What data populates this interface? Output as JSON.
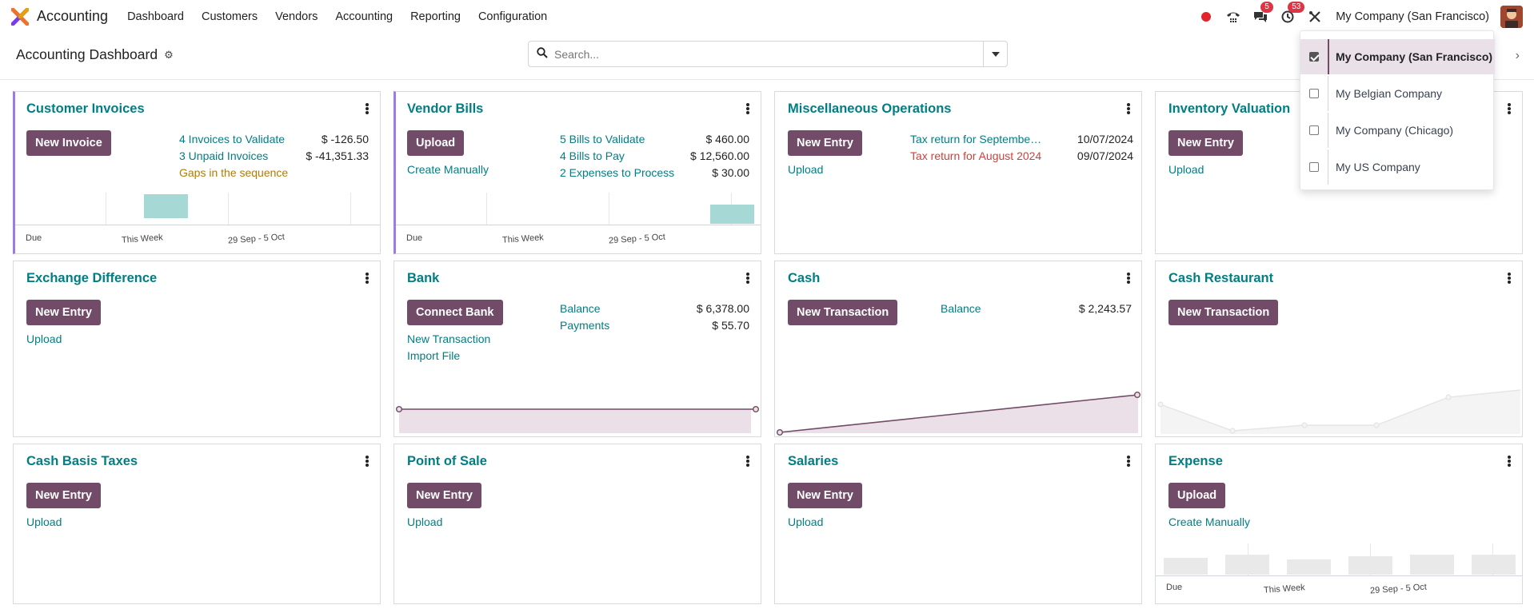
{
  "navbar": {
    "app_name": "Accounting",
    "menu": [
      "Dashboard",
      "Customers",
      "Vendors",
      "Accounting",
      "Reporting",
      "Configuration"
    ],
    "messages_count": "5",
    "activities_count": "53",
    "company": "My Company (San Francisco)"
  },
  "control": {
    "title": "Accounting Dashboard",
    "search_placeholder": "Search..."
  },
  "company_dropdown": {
    "items": [
      {
        "label": "My Company (San Francisco)",
        "checked": true
      },
      {
        "label": "My Belgian Company",
        "checked": false
      },
      {
        "label": "My Company (Chicago)",
        "checked": false
      },
      {
        "label": "My US Company",
        "checked": false
      }
    ]
  },
  "cards": {
    "customer_invoices": {
      "title": "Customer Invoices",
      "button": "New Invoice",
      "rows": [
        {
          "label": "4 Invoices to Validate",
          "value": "$ -126.50"
        },
        {
          "label": "3 Unpaid Invoices",
          "value": "$ -41,351.33"
        }
      ],
      "warning": "Gaps in the sequence",
      "chart": {
        "labels": [
          "Due",
          "This Week",
          "29 Sep - 5 Oct"
        ]
      }
    },
    "vendor_bills": {
      "title": "Vendor Bills",
      "button": "Upload",
      "link": "Create Manually",
      "rows": [
        {
          "label": "5 Bills to Validate",
          "value": "$ 460.00"
        },
        {
          "label": "4 Bills to Pay",
          "value": "$ 12,560.00"
        },
        {
          "label": "2 Expenses to Process",
          "value": "$ 30.00"
        }
      ],
      "chart": {
        "labels": [
          "Due",
          "This Week",
          "29 Sep - 5 Oct"
        ]
      }
    },
    "misc_operations": {
      "title": "Miscellaneous Operations",
      "button": "New Entry",
      "link": "Upload",
      "rows": [
        {
          "label": "Tax return for Septembe…",
          "value": "10/07/2024"
        },
        {
          "label": "Tax return for August 2024",
          "value": "09/07/2024"
        }
      ]
    },
    "inventory_valuation": {
      "title": "Inventory Valuation",
      "button": "New Entry",
      "link": "Upload"
    },
    "exchange_difference": {
      "title": "Exchange Difference",
      "button": "New Entry",
      "link": "Upload"
    },
    "bank": {
      "title": "Bank",
      "button": "Connect Bank",
      "links": [
        "New Transaction",
        "Import File"
      ],
      "rows": [
        {
          "label": "Balance",
          "value": "$ 6,378.00"
        },
        {
          "label": "Payments",
          "value": "$ 55.70"
        }
      ]
    },
    "cash": {
      "title": "Cash",
      "button": "New Transaction",
      "rows": [
        {
          "label": "Balance",
          "value": "$ 2,243.57"
        }
      ]
    },
    "cash_restaurant": {
      "title": "Cash Restaurant",
      "button": "New Transaction"
    },
    "cash_basis_taxes": {
      "title": "Cash Basis Taxes",
      "button": "New Entry",
      "link": "Upload"
    },
    "point_of_sale": {
      "title": "Point of Sale",
      "button": "New Entry",
      "link": "Upload"
    },
    "salaries": {
      "title": "Salaries",
      "button": "New Entry",
      "link": "Upload"
    },
    "expense": {
      "title": "Expense",
      "button": "Upload",
      "link": "Create Manually",
      "chart": {
        "labels": [
          "Due",
          "This Week",
          "29 Sep - 5 Oct"
        ]
      }
    }
  },
  "colors": {
    "primary": "#714b67",
    "link": "#017e84",
    "warning": "#b17b05",
    "danger": "#d23f3a",
    "bar": "#a6d9d6"
  }
}
